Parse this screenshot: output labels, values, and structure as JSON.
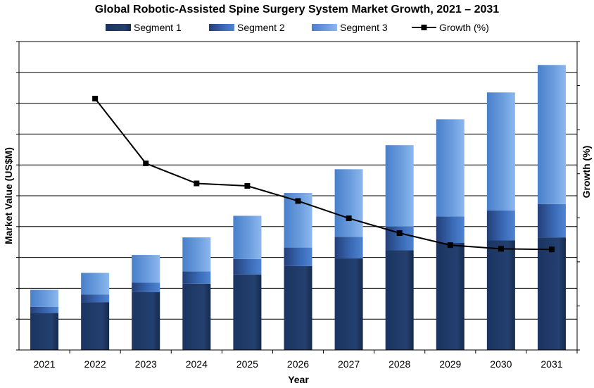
{
  "chart_data": {
    "type": "bar",
    "stacked": true,
    "title": "Global Robotic-Assisted Spine Surgery System Market Growth, 2021 – 2031",
    "xlabel": "Year",
    "ylabel": "Market Value (US$M)",
    "y2label": "Growth (%)",
    "categories": [
      "2021",
      "2022",
      "2023",
      "2024",
      "2025",
      "2026",
      "2027",
      "2028",
      "2029",
      "2030",
      "2031"
    ],
    "ylim": [
      0,
      100
    ],
    "y2lim": [
      0,
      100
    ],
    "grid": true,
    "legend_position": "top",
    "series": [
      {
        "name": "Segment 1",
        "values": [
          12,
          15.5,
          18.8,
          21.5,
          24.5,
          27.2,
          29.7,
          32.3,
          34.7,
          35.5,
          36.5
        ],
        "color": "#1f3864"
      },
      {
        "name": "Segment 2",
        "values": [
          2,
          2.5,
          3,
          4,
          5,
          6,
          7,
          7.7,
          8.6,
          9.7,
          10.8
        ],
        "color": "#2e5ea8"
      },
      {
        "name": "Segment 3",
        "values": [
          5.5,
          7,
          9,
          11,
          14,
          17.7,
          21.9,
          26.4,
          31.5,
          38.3,
          45.1
        ],
        "color": "#5b8fd6"
      }
    ],
    "line_series": {
      "name": "Growth (%)",
      "axis": "right",
      "values": [
        null,
        81.5,
        60.5,
        54,
        53.2,
        48.3,
        42.7,
        37.9,
        34,
        32.8,
        32.6
      ],
      "color": "#000000"
    }
  }
}
